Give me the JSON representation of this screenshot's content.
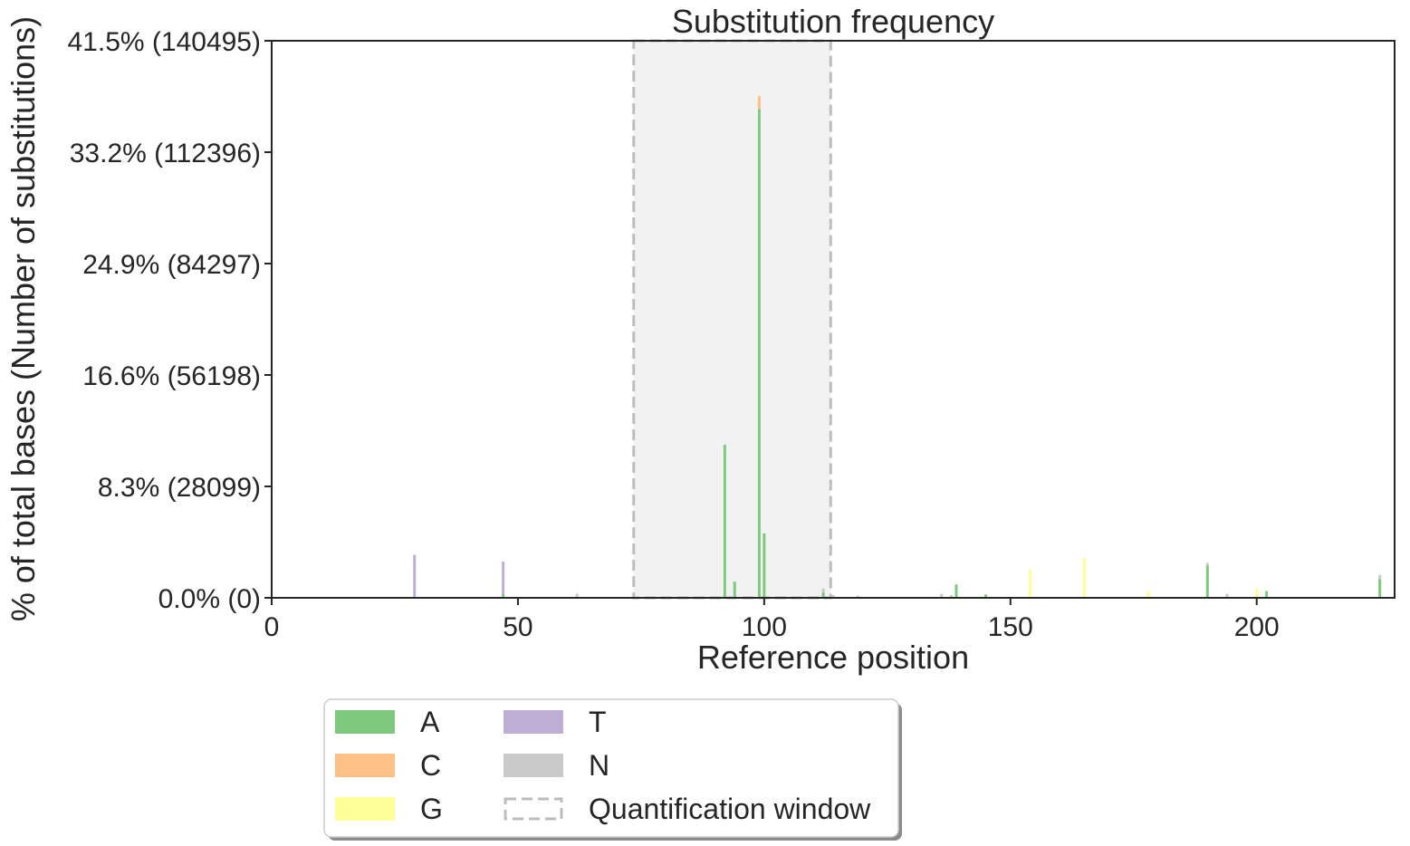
{
  "chart_data": {
    "type": "bar",
    "stacked": true,
    "title": "Substitution frequency",
    "xlabel": "Reference position",
    "ylabel": "% of total bases (Number of substitutions)",
    "xlim": [
      0,
      228
    ],
    "ylim": [
      0,
      41.5
    ],
    "x_ticks": [
      0,
      50,
      100,
      150,
      200
    ],
    "y_ticks": [
      {
        "value": 0.0,
        "label": "0.0% (0)"
      },
      {
        "value": 8.3,
        "label": "8.3% (28099)"
      },
      {
        "value": 16.6,
        "label": "16.6% (56198)"
      },
      {
        "value": 24.9,
        "label": "24.9% (84297)"
      },
      {
        "value": 33.2,
        "label": "33.2% (112396)"
      },
      {
        "value": 41.5,
        "label": "41.5% (140495)"
      }
    ],
    "grid": false,
    "quantification_window": {
      "start": 73.5,
      "end": 113.5
    },
    "series": [
      {
        "name": "A",
        "color": "#7fc97f",
        "points": [
          [
            47,
            0.3
          ],
          [
            92,
            11.4
          ],
          [
            94,
            1.2
          ],
          [
            99,
            36.4
          ],
          [
            100,
            4.8
          ],
          [
            112,
            0.4
          ],
          [
            139,
            1.0
          ],
          [
            145,
            0.25
          ],
          [
            190,
            2.4
          ],
          [
            202,
            0.5
          ],
          [
            225,
            1.4
          ]
        ]
      },
      {
        "name": "C",
        "color": "#fdc086",
        "points": [
          [
            99,
            1.0
          ]
        ]
      },
      {
        "name": "G",
        "color": "#ffff99",
        "points": [
          [
            154,
            2.1
          ],
          [
            165,
            3.0
          ],
          [
            178,
            0.5
          ],
          [
            200,
            0.7
          ]
        ]
      },
      {
        "name": "T",
        "color": "#beaed4",
        "points": [
          [
            29,
            3.2
          ],
          [
            47,
            2.4
          ]
        ]
      },
      {
        "name": "N",
        "color": "#c9c9c9",
        "points": [
          [
            62,
            0.3
          ],
          [
            112,
            0.3
          ],
          [
            114,
            0.2
          ],
          [
            119,
            0.15
          ],
          [
            136,
            0.3
          ],
          [
            138,
            0.2
          ],
          [
            190,
            0.2
          ],
          [
            194,
            0.3
          ],
          [
            225,
            0.3
          ]
        ]
      }
    ],
    "legend": {
      "placement": "below",
      "window_label": "Quantification window"
    }
  }
}
